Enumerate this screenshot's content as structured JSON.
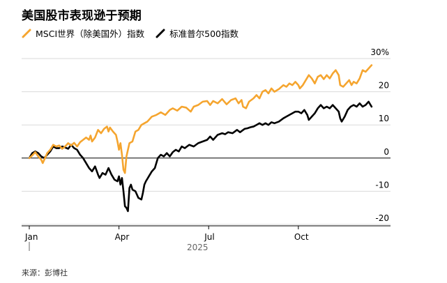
{
  "title": "美国股市表现逊于预期",
  "source": "来源：彭博社",
  "colors": {
    "msci": "#F5A52F",
    "sp500": "#000000",
    "grid": "#d9d9d9",
    "axis": "#000000"
  },
  "chart_data": {
    "type": "line",
    "title": "美国股市表现逊于预期",
    "ylim": [
      -22,
      32
    ],
    "y_ticks": [
      {
        "value": 30,
        "label": "30%"
      },
      {
        "value": 20,
        "label": "20"
      },
      {
        "value": 10,
        "label": "10"
      },
      {
        "value": 0,
        "label": "0"
      },
      {
        "value": -10,
        "label": "-10"
      },
      {
        "value": -20,
        "label": "-20"
      }
    ],
    "x_ticks": [
      {
        "value": 0,
        "label": "Jan"
      },
      {
        "value": 3,
        "label": "Apr"
      },
      {
        "value": 6,
        "label": "Jul"
      },
      {
        "value": 9,
        "label": "Oct"
      }
    ],
    "year_label": "2025",
    "xlim": [
      0,
      11.5
    ],
    "legend_position": "top-left",
    "grid": true,
    "series": [
      {
        "name": "MSCI世界（除美国外）指数",
        "color_key": "msci",
        "points": [
          [
            0.0,
            0.0
          ],
          [
            0.1,
            0.8
          ],
          [
            0.2,
            1.8
          ],
          [
            0.3,
            0.5
          ],
          [
            0.4,
            -0.5
          ],
          [
            0.45,
            -1.5
          ],
          [
            0.5,
            -0.5
          ],
          [
            0.6,
            1.5
          ],
          [
            0.7,
            2.5
          ],
          [
            0.8,
            4
          ],
          [
            0.9,
            3.5
          ],
          [
            1.0,
            3.8
          ],
          [
            1.1,
            2.8
          ],
          [
            1.2,
            3.5
          ],
          [
            1.3,
            4.5
          ],
          [
            1.4,
            3.8
          ],
          [
            1.5,
            4.6
          ],
          [
            1.6,
            3.5
          ],
          [
            1.7,
            4.8
          ],
          [
            1.8,
            5.5
          ],
          [
            1.9,
            6.2
          ],
          [
            2.0,
            5.5
          ],
          [
            2.05,
            6.8
          ],
          [
            2.1,
            5.0
          ],
          [
            2.2,
            6.2
          ],
          [
            2.3,
            8.5
          ],
          [
            2.4,
            7.5
          ],
          [
            2.5,
            8.8
          ],
          [
            2.6,
            9.5
          ],
          [
            2.65,
            8.0
          ],
          [
            2.7,
            9.2
          ],
          [
            2.8,
            8.0
          ],
          [
            2.9,
            7.0
          ],
          [
            2.95,
            5.0
          ],
          [
            3.0,
            2.5
          ],
          [
            3.05,
            4.5
          ],
          [
            3.1,
            1.0
          ],
          [
            3.15,
            -3.5
          ],
          [
            3.2,
            -4.5
          ],
          [
            3.25,
            0.5
          ],
          [
            3.35,
            4.5
          ],
          [
            3.45,
            5.0
          ],
          [
            3.55,
            8.0
          ],
          [
            3.65,
            8.5
          ],
          [
            3.75,
            10.0
          ],
          [
            3.85,
            10.5
          ],
          [
            3.95,
            11.0
          ],
          [
            4.1,
            12.5
          ],
          [
            4.25,
            13.0
          ],
          [
            4.4,
            13.8
          ],
          [
            4.55,
            13.0
          ],
          [
            4.7,
            14.5
          ],
          [
            4.8,
            15.0
          ],
          [
            4.95,
            14.3
          ],
          [
            5.1,
            15.5
          ],
          [
            5.25,
            15.2
          ],
          [
            5.4,
            14.0
          ],
          [
            5.5,
            15.5
          ],
          [
            5.65,
            16.0
          ],
          [
            5.8,
            17.0
          ],
          [
            5.95,
            17.2
          ],
          [
            6.05,
            16.0
          ],
          [
            6.15,
            17.2
          ],
          [
            6.3,
            16.5
          ],
          [
            6.45,
            17.8
          ],
          [
            6.6,
            16.2
          ],
          [
            6.75,
            17.5
          ],
          [
            6.9,
            18.0
          ],
          [
            7.0,
            16.5
          ],
          [
            7.1,
            17.5
          ],
          [
            7.15,
            15.5
          ],
          [
            7.25,
            15.0
          ],
          [
            7.35,
            17.0
          ],
          [
            7.5,
            18.0
          ],
          [
            7.6,
            19.0
          ],
          [
            7.7,
            18.0
          ],
          [
            7.8,
            20.0
          ],
          [
            7.9,
            20.5
          ],
          [
            8.0,
            19.5
          ],
          [
            8.1,
            21.0
          ],
          [
            8.2,
            20.0
          ],
          [
            8.35,
            20.8
          ],
          [
            8.5,
            22.0
          ],
          [
            8.6,
            21.5
          ],
          [
            8.7,
            22.5
          ],
          [
            8.8,
            22.0
          ],
          [
            8.9,
            23.0
          ],
          [
            9.0,
            22.0
          ],
          [
            9.05,
            21.0
          ],
          [
            9.15,
            22.0
          ],
          [
            9.25,
            23.5
          ],
          [
            9.35,
            25.0
          ],
          [
            9.45,
            24.0
          ],
          [
            9.55,
            22.5
          ],
          [
            9.65,
            24.5
          ],
          [
            9.75,
            25.0
          ],
          [
            9.85,
            23.8
          ],
          [
            9.95,
            25.0
          ],
          [
            10.05,
            24.0
          ],
          [
            10.15,
            25.5
          ],
          [
            10.25,
            26.5
          ],
          [
            10.35,
            25.0
          ],
          [
            10.4,
            22.0
          ],
          [
            10.5,
            21.5
          ],
          [
            10.6,
            22.5
          ],
          [
            10.7,
            23.5
          ],
          [
            10.78,
            22.0
          ],
          [
            10.85,
            23.0
          ],
          [
            10.95,
            22.5
          ],
          [
            11.05,
            24.0
          ],
          [
            11.15,
            26.5
          ],
          [
            11.25,
            26.0
          ],
          [
            11.35,
            27.0
          ],
          [
            11.45,
            28.0
          ]
        ]
      },
      {
        "name": "标准普尔500指数",
        "color_key": "sp500",
        "points": [
          [
            0.0,
            0.0
          ],
          [
            0.1,
            1.5
          ],
          [
            0.2,
            2.0
          ],
          [
            0.3,
            1.5
          ],
          [
            0.4,
            0.5
          ],
          [
            0.5,
            0.0
          ],
          [
            0.6,
            1.0
          ],
          [
            0.7,
            2.0
          ],
          [
            0.8,
            3.5
          ],
          [
            0.9,
            3.0
          ],
          [
            1.0,
            3.0
          ],
          [
            1.1,
            3.5
          ],
          [
            1.2,
            3.2
          ],
          [
            1.3,
            2.8
          ],
          [
            1.4,
            4.0
          ],
          [
            1.5,
            3.0
          ],
          [
            1.6,
            2.5
          ],
          [
            1.7,
            1.0
          ],
          [
            1.8,
            0.0
          ],
          [
            1.9,
            -1.5
          ],
          [
            2.0,
            -3.0
          ],
          [
            2.1,
            -4.0
          ],
          [
            2.2,
            -2.5
          ],
          [
            2.3,
            -5.0
          ],
          [
            2.35,
            -6.0
          ],
          [
            2.45,
            -4.5
          ],
          [
            2.55,
            -5.0
          ],
          [
            2.65,
            -3.0
          ],
          [
            2.75,
            -5.0
          ],
          [
            2.85,
            -6.5
          ],
          [
            2.95,
            -7.0
          ],
          [
            3.0,
            -5.5
          ],
          [
            3.05,
            -8.0
          ],
          [
            3.1,
            -6.0
          ],
          [
            3.15,
            -10.0
          ],
          [
            3.2,
            -14.5
          ],
          [
            3.25,
            -15.0
          ],
          [
            3.3,
            -16.0
          ],
          [
            3.35,
            -9.0
          ],
          [
            3.4,
            -8.0
          ],
          [
            3.45,
            -9.5
          ],
          [
            3.55,
            -10.0
          ],
          [
            3.65,
            -12.0
          ],
          [
            3.75,
            -12.5
          ],
          [
            3.8,
            -10.5
          ],
          [
            3.85,
            -8.0
          ],
          [
            3.9,
            -7.0
          ],
          [
            4.0,
            -5.5
          ],
          [
            4.1,
            -4.0
          ],
          [
            4.2,
            -3.0
          ],
          [
            4.3,
            0.0
          ],
          [
            4.4,
            1.0
          ],
          [
            4.5,
            0.5
          ],
          [
            4.6,
            1.5
          ],
          [
            4.7,
            0.5
          ],
          [
            4.8,
            1.8
          ],
          [
            4.9,
            2.5
          ],
          [
            5.0,
            2.0
          ],
          [
            5.1,
            3.5
          ],
          [
            5.2,
            3.0
          ],
          [
            5.35,
            4.0
          ],
          [
            5.5,
            3.5
          ],
          [
            5.65,
            4.5
          ],
          [
            5.8,
            5.0
          ],
          [
            5.95,
            5.5
          ],
          [
            6.05,
            6.5
          ],
          [
            6.15,
            5.5
          ],
          [
            6.3,
            7.0
          ],
          [
            6.45,
            7.5
          ],
          [
            6.55,
            7.2
          ],
          [
            6.65,
            7.8
          ],
          [
            6.8,
            7.5
          ],
          [
            6.95,
            8.5
          ],
          [
            7.05,
            7.8
          ],
          [
            7.2,
            8.8
          ],
          [
            7.3,
            9.0
          ],
          [
            7.4,
            9.3
          ],
          [
            7.5,
            9.5
          ],
          [
            7.6,
            10.0
          ],
          [
            7.7,
            10.5
          ],
          [
            7.8,
            10.0
          ],
          [
            7.9,
            10.5
          ],
          [
            8.0,
            10.0
          ],
          [
            8.1,
            10.8
          ],
          [
            8.2,
            10.5
          ],
          [
            8.35,
            11.0
          ],
          [
            8.5,
            12.0
          ],
          [
            8.6,
            12.5
          ],
          [
            8.7,
            13.0
          ],
          [
            8.8,
            13.5
          ],
          [
            8.9,
            14.0
          ],
          [
            9.0,
            14.0
          ],
          [
            9.1,
            13.5
          ],
          [
            9.2,
            14.5
          ],
          [
            9.3,
            13.0
          ],
          [
            9.35,
            11.5
          ],
          [
            9.45,
            12.5
          ],
          [
            9.55,
            13.5
          ],
          [
            9.65,
            15.0
          ],
          [
            9.75,
            16.0
          ],
          [
            9.85,
            15.0
          ],
          [
            9.95,
            15.5
          ],
          [
            10.05,
            15.0
          ],
          [
            10.15,
            16.0
          ],
          [
            10.25,
            15.0
          ],
          [
            10.35,
            14.0
          ],
          [
            10.4,
            12.0
          ],
          [
            10.45,
            11.0
          ],
          [
            10.55,
            12.5
          ],
          [
            10.65,
            14.5
          ],
          [
            10.75,
            15.5
          ],
          [
            10.85,
            16.0
          ],
          [
            10.95,
            15.5
          ],
          [
            11.05,
            16.5
          ],
          [
            11.15,
            15.5
          ],
          [
            11.25,
            16.0
          ],
          [
            11.35,
            17.0
          ],
          [
            11.45,
            15.5
          ]
        ]
      }
    ]
  }
}
